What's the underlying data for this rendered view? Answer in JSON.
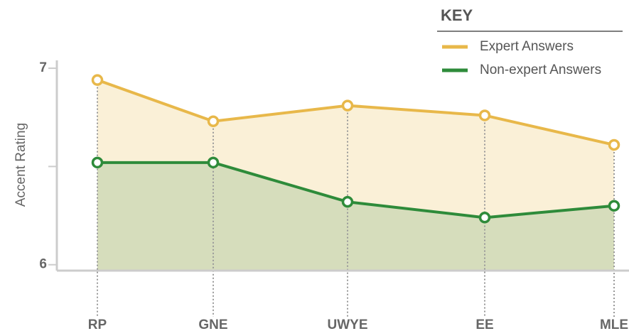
{
  "chart_data": {
    "type": "area",
    "y_label": "Accent Rating",
    "legend_title": "KEY",
    "categories": [
      "RP",
      "GNE",
      "UWYE",
      "EE",
      "MLE"
    ],
    "series": [
      {
        "name": "Expert Answers",
        "color": "#e8b84a",
        "fill": "#faf0d7",
        "values": [
          6.94,
          6.73,
          6.81,
          6.76,
          6.61
        ]
      },
      {
        "name": "Non-expert Answers",
        "color": "#2e8b3a",
        "fill": "#d6ddbc",
        "values": [
          6.52,
          6.52,
          6.32,
          6.24,
          6.3
        ]
      }
    ],
    "ylim": [
      5.97,
      7.04
    ],
    "yticks": [
      6,
      {
        "value": 6.5,
        "label": null
      },
      7
    ],
    "legend": "top-right"
  }
}
